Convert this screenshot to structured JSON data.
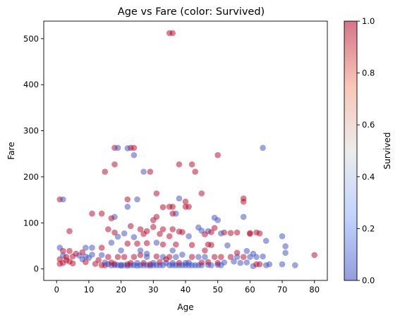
{
  "chart_data": {
    "type": "scatter",
    "title": "Age vs Fare (color: Survived)",
    "xlabel": "Age",
    "ylabel": "Fare",
    "xlim": [
      -4,
      84
    ],
    "ylim": [
      -25,
      538
    ],
    "xticks": [
      0,
      10,
      20,
      30,
      40,
      50,
      60,
      70,
      80
    ],
    "yticks": [
      0,
      100,
      200,
      300,
      400,
      500
    ],
    "grid": false,
    "marker_alpha": 0.5,
    "colorbar": {
      "label": "Survived",
      "range": [
        0,
        1
      ],
      "ticks": [
        0.0,
        0.2,
        0.4,
        0.6,
        0.8,
        1.0
      ],
      "tick_labels": [
        "0.0",
        "0.2",
        "0.4",
        "0.6",
        "0.8",
        "1.0"
      ],
      "colormap": "coolwarm",
      "stops": [
        "#3b4cc0",
        "#8fb1fe",
        "#dddcdc",
        "#f4987a",
        "#b40426"
      ]
    },
    "points": [
      {
        "x": 35,
        "y": 512,
        "c": 1
      },
      {
        "x": 36,
        "y": 512,
        "c": 1
      },
      {
        "x": 18,
        "y": 263,
        "c": 1
      },
      {
        "x": 19,
        "y": 263,
        "c": 0
      },
      {
        "x": 23,
        "y": 263,
        "c": 1
      },
      {
        "x": 24,
        "y": 263,
        "c": 1
      },
      {
        "x": 64,
        "y": 263,
        "c": 0
      },
      {
        "x": 22,
        "y": 262,
        "c": 0
      },
      {
        "x": 24,
        "y": 247,
        "c": 0
      },
      {
        "x": 50,
        "y": 247,
        "c": 1
      },
      {
        "x": 38,
        "y": 227,
        "c": 1
      },
      {
        "x": 18,
        "y": 227,
        "c": 1
      },
      {
        "x": 42,
        "y": 227,
        "c": 1
      },
      {
        "x": 15,
        "y": 211,
        "c": 1
      },
      {
        "x": 27,
        "y": 211,
        "c": 0
      },
      {
        "x": 29,
        "y": 211,
        "c": 1
      },
      {
        "x": 43,
        "y": 211,
        "c": 1
      },
      {
        "x": 31,
        "y": 164,
        "c": 1
      },
      {
        "x": 45,
        "y": 164,
        "c": 1
      },
      {
        "x": 1,
        "y": 151,
        "c": 1
      },
      {
        "x": 2,
        "y": 151,
        "c": 0
      },
      {
        "x": 22,
        "y": 151,
        "c": 1
      },
      {
        "x": 25,
        "y": 151,
        "c": 0
      },
      {
        "x": 58,
        "y": 153,
        "c": 1
      },
      {
        "x": 58,
        "y": 146,
        "c": 1
      },
      {
        "x": 38,
        "y": 153,
        "c": 0
      },
      {
        "x": 40,
        "y": 146,
        "c": 1
      },
      {
        "x": 22,
        "y": 135,
        "c": 0
      },
      {
        "x": 35,
        "y": 135,
        "c": 1
      },
      {
        "x": 36,
        "y": 135,
        "c": 1
      },
      {
        "x": 41,
        "y": 135,
        "c": 1
      },
      {
        "x": 40,
        "y": 135,
        "c": 1
      },
      {
        "x": 33,
        "y": 134,
        "c": 1
      },
      {
        "x": 37,
        "y": 120,
        "c": 0
      },
      {
        "x": 11,
        "y": 120,
        "c": 1
      },
      {
        "x": 14,
        "y": 120,
        "c": 1
      },
      {
        "x": 36,
        "y": 120,
        "c": 1
      },
      {
        "x": 18,
        "y": 113,
        "c": 0
      },
      {
        "x": 58,
        "y": 113,
        "c": 0
      },
      {
        "x": 49,
        "y": 111,
        "c": 0
      },
      {
        "x": 17,
        "y": 110,
        "c": 1
      },
      {
        "x": 31,
        "y": 113,
        "c": 1
      },
      {
        "x": 30,
        "y": 106,
        "c": 1
      },
      {
        "x": 50,
        "y": 106,
        "c": 0
      },
      {
        "x": 23,
        "y": 93,
        "c": 1
      },
      {
        "x": 44,
        "y": 90,
        "c": 0
      },
      {
        "x": 49,
        "y": 89,
        "c": 1
      },
      {
        "x": 30,
        "y": 91,
        "c": 1
      },
      {
        "x": 16,
        "y": 86,
        "c": 1
      },
      {
        "x": 26,
        "y": 86,
        "c": 1
      },
      {
        "x": 33,
        "y": 86,
        "c": 1
      },
      {
        "x": 36,
        "y": 86,
        "c": 1
      },
      {
        "x": 4,
        "y": 82,
        "c": 1
      },
      {
        "x": 47,
        "y": 82,
        "c": 0
      },
      {
        "x": 48,
        "y": 80,
        "c": 1
      },
      {
        "x": 54,
        "y": 78,
        "c": 1
      },
      {
        "x": 60,
        "y": 78,
        "c": 1
      },
      {
        "x": 60,
        "y": 76,
        "c": 1
      },
      {
        "x": 21,
        "y": 77,
        "c": 0
      },
      {
        "x": 28,
        "y": 82,
        "c": 1
      },
      {
        "x": 38,
        "y": 81,
        "c": 1
      },
      {
        "x": 39,
        "y": 80,
        "c": 1
      },
      {
        "x": 45,
        "y": 83,
        "c": 0
      },
      {
        "x": 52,
        "y": 79,
        "c": 1
      },
      {
        "x": 56,
        "y": 79,
        "c": 1
      },
      {
        "x": 62,
        "y": 79,
        "c": 1
      },
      {
        "x": 63,
        "y": 77,
        "c": 1
      },
      {
        "x": 18,
        "y": 79,
        "c": 1
      },
      {
        "x": 19,
        "y": 70,
        "c": 0
      },
      {
        "x": 24,
        "y": 69,
        "c": 0
      },
      {
        "x": 27,
        "y": 76,
        "c": 1
      },
      {
        "x": 32,
        "y": 76,
        "c": 1
      },
      {
        "x": 35,
        "y": 71,
        "c": 1
      },
      {
        "x": 41,
        "y": 71,
        "c": 0
      },
      {
        "x": 46,
        "y": 75,
        "c": 1
      },
      {
        "x": 51,
        "y": 77,
        "c": 0
      },
      {
        "x": 70,
        "y": 71,
        "c": 0
      },
      {
        "x": 71,
        "y": 49,
        "c": 0
      },
      {
        "x": 65,
        "y": 61,
        "c": 0
      },
      {
        "x": 66,
        "y": 10,
        "c": 0
      },
      {
        "x": 9,
        "y": 46,
        "c": 0
      },
      {
        "x": 11,
        "y": 46,
        "c": 0
      },
      {
        "x": 1,
        "y": 46,
        "c": 0
      },
      {
        "x": 2,
        "y": 39,
        "c": 1
      },
      {
        "x": 14,
        "y": 46,
        "c": 1
      },
      {
        "x": 17,
        "y": 57,
        "c": 0
      },
      {
        "x": 22,
        "y": 55,
        "c": 1
      },
      {
        "x": 25,
        "y": 55,
        "c": 1
      },
      {
        "x": 28,
        "y": 56,
        "c": 1
      },
      {
        "x": 31,
        "y": 57,
        "c": 0
      },
      {
        "x": 33,
        "y": 53,
        "c": 1
      },
      {
        "x": 37,
        "y": 53,
        "c": 1
      },
      {
        "x": 42,
        "y": 52,
        "c": 1
      },
      {
        "x": 47,
        "y": 53,
        "c": 1
      },
      {
        "x": 48,
        "y": 52,
        "c": 1
      },
      {
        "x": 53,
        "y": 51,
        "c": 0
      },
      {
        "x": 56,
        "y": 35,
        "c": 1
      },
      {
        "x": 59,
        "y": 39,
        "c": 0
      },
      {
        "x": 61,
        "y": 33,
        "c": 0
      },
      {
        "x": 62,
        "y": 26,
        "c": 0
      },
      {
        "x": 64,
        "y": 27,
        "c": 0
      },
      {
        "x": 70,
        "y": 10,
        "c": 0
      },
      {
        "x": 71,
        "y": 35,
        "c": 0
      },
      {
        "x": 74,
        "y": 8,
        "c": 0
      },
      {
        "x": 80,
        "y": 30,
        "c": 1
      },
      {
        "x": 1,
        "y": 11,
        "c": 1
      },
      {
        "x": 1,
        "y": 21,
        "c": 1
      },
      {
        "x": 2,
        "y": 29,
        "c": 0
      },
      {
        "x": 2,
        "y": 13,
        "c": 1
      },
      {
        "x": 3,
        "y": 26,
        "c": 1
      },
      {
        "x": 3,
        "y": 19,
        "c": 1
      },
      {
        "x": 4,
        "y": 16,
        "c": 1
      },
      {
        "x": 4,
        "y": 39,
        "c": 1
      },
      {
        "x": 5,
        "y": 27,
        "c": 1
      },
      {
        "x": 5,
        "y": 12,
        "c": 1
      },
      {
        "x": 6,
        "y": 33,
        "c": 1
      },
      {
        "x": 7,
        "y": 29,
        "c": 0
      },
      {
        "x": 8,
        "y": 21,
        "c": 0
      },
      {
        "x": 8,
        "y": 36,
        "c": 1
      },
      {
        "x": 9,
        "y": 27,
        "c": 0
      },
      {
        "x": 9,
        "y": 15,
        "c": 1
      },
      {
        "x": 10,
        "y": 24,
        "c": 0
      },
      {
        "x": 11,
        "y": 31,
        "c": 0
      },
      {
        "x": 12,
        "y": 11,
        "c": 1
      },
      {
        "x": 13,
        "y": 19,
        "c": 1
      },
      {
        "x": 14,
        "y": 30,
        "c": 0
      },
      {
        "x": 14,
        "y": 8,
        "c": 1
      },
      {
        "x": 15,
        "y": 8,
        "c": 1
      },
      {
        "x": 15,
        "y": 14,
        "c": 0
      },
      {
        "x": 16,
        "y": 10,
        "c": 0
      },
      {
        "x": 16,
        "y": 26,
        "c": 1
      },
      {
        "x": 17,
        "y": 8,
        "c": 0
      },
      {
        "x": 17,
        "y": 14,
        "c": 1
      },
      {
        "x": 18,
        "y": 8,
        "c": 0
      },
      {
        "x": 18,
        "y": 11,
        "c": 1
      },
      {
        "x": 19,
        "y": 8,
        "c": 0
      },
      {
        "x": 19,
        "y": 26,
        "c": 1
      },
      {
        "x": 20,
        "y": 7,
        "c": 0
      },
      {
        "x": 20,
        "y": 9,
        "c": 0
      },
      {
        "x": 21,
        "y": 8,
        "c": 0
      },
      {
        "x": 21,
        "y": 26,
        "c": 1
      },
      {
        "x": 22,
        "y": 7,
        "c": 0
      },
      {
        "x": 22,
        "y": 10,
        "c": 1
      },
      {
        "x": 23,
        "y": 8,
        "c": 0
      },
      {
        "x": 23,
        "y": 13,
        "c": 1
      },
      {
        "x": 24,
        "y": 8,
        "c": 0
      },
      {
        "x": 24,
        "y": 26,
        "c": 1
      },
      {
        "x": 25,
        "y": 7,
        "c": 0
      },
      {
        "x": 25,
        "y": 13,
        "c": 0
      },
      {
        "x": 26,
        "y": 8,
        "c": 0
      },
      {
        "x": 26,
        "y": 30,
        "c": 1
      },
      {
        "x": 27,
        "y": 8,
        "c": 0
      },
      {
        "x": 27,
        "y": 13,
        "c": 1
      },
      {
        "x": 28,
        "y": 8,
        "c": 0
      },
      {
        "x": 28,
        "y": 26,
        "c": 0
      },
      {
        "x": 29,
        "y": 7,
        "c": 0
      },
      {
        "x": 29,
        "y": 10,
        "c": 1
      },
      {
        "x": 30,
        "y": 8,
        "c": 0
      },
      {
        "x": 30,
        "y": 13,
        "c": 0
      },
      {
        "x": 31,
        "y": 8,
        "c": 0
      },
      {
        "x": 31,
        "y": 27,
        "c": 1
      },
      {
        "x": 32,
        "y": 8,
        "c": 0
      },
      {
        "x": 32,
        "y": 15,
        "c": 1
      },
      {
        "x": 33,
        "y": 8,
        "c": 0
      },
      {
        "x": 33,
        "y": 26,
        "c": 0
      },
      {
        "x": 34,
        "y": 13,
        "c": 0
      },
      {
        "x": 34,
        "y": 21,
        "c": 1
      },
      {
        "x": 35,
        "y": 8,
        "c": 0
      },
      {
        "x": 35,
        "y": 26,
        "c": 1
      },
      {
        "x": 36,
        "y": 8,
        "c": 0
      },
      {
        "x": 36,
        "y": 13,
        "c": 0
      },
      {
        "x": 37,
        "y": 8,
        "c": 0
      },
      {
        "x": 37,
        "y": 26,
        "c": 0
      },
      {
        "x": 38,
        "y": 8,
        "c": 0
      },
      {
        "x": 38,
        "y": 13,
        "c": 1
      },
      {
        "x": 39,
        "y": 8,
        "c": 0
      },
      {
        "x": 39,
        "y": 31,
        "c": 0
      },
      {
        "x": 40,
        "y": 8,
        "c": 0
      },
      {
        "x": 40,
        "y": 13,
        "c": 0
      },
      {
        "x": 41,
        "y": 8,
        "c": 0
      },
      {
        "x": 41,
        "y": 14,
        "c": 0
      },
      {
        "x": 42,
        "y": 8,
        "c": 0
      },
      {
        "x": 42,
        "y": 26,
        "c": 1
      },
      {
        "x": 43,
        "y": 8,
        "c": 0
      },
      {
        "x": 44,
        "y": 8,
        "c": 0
      },
      {
        "x": 44,
        "y": 26,
        "c": 0
      },
      {
        "x": 45,
        "y": 8,
        "c": 0
      },
      {
        "x": 45,
        "y": 14,
        "c": 1
      },
      {
        "x": 46,
        "y": 26,
        "c": 0
      },
      {
        "x": 47,
        "y": 9,
        "c": 0
      },
      {
        "x": 47,
        "y": 15,
        "c": 1
      },
      {
        "x": 48,
        "y": 8,
        "c": 0
      },
      {
        "x": 49,
        "y": 26,
        "c": 1
      },
      {
        "x": 50,
        "y": 9,
        "c": 0
      },
      {
        "x": 50,
        "y": 13,
        "c": 1
      },
      {
        "x": 51,
        "y": 8,
        "c": 0
      },
      {
        "x": 51,
        "y": 26,
        "c": 1
      },
      {
        "x": 52,
        "y": 14,
        "c": 0
      },
      {
        "x": 54,
        "y": 26,
        "c": 1
      },
      {
        "x": 55,
        "y": 16,
        "c": 0
      },
      {
        "x": 56,
        "y": 26,
        "c": 0
      },
      {
        "x": 57,
        "y": 13,
        "c": 0
      },
      {
        "x": 58,
        "y": 26,
        "c": 1
      },
      {
        "x": 59,
        "y": 14,
        "c": 0
      },
      {
        "x": 60,
        "y": 26,
        "c": 0
      },
      {
        "x": 61,
        "y": 6,
        "c": 0
      },
      {
        "x": 62,
        "y": 10,
        "c": 1
      },
      {
        "x": 63,
        "y": 10,
        "c": 1
      },
      {
        "x": 65,
        "y": 8,
        "c": 0
      },
      {
        "x": 20,
        "y": 40,
        "c": 0
      },
      {
        "x": 26,
        "y": 40,
        "c": 0
      },
      {
        "x": 36,
        "y": 40,
        "c": 0
      },
      {
        "x": 46,
        "y": 40,
        "c": 1
      },
      {
        "x": 28,
        "y": 33,
        "c": 0
      }
    ]
  }
}
